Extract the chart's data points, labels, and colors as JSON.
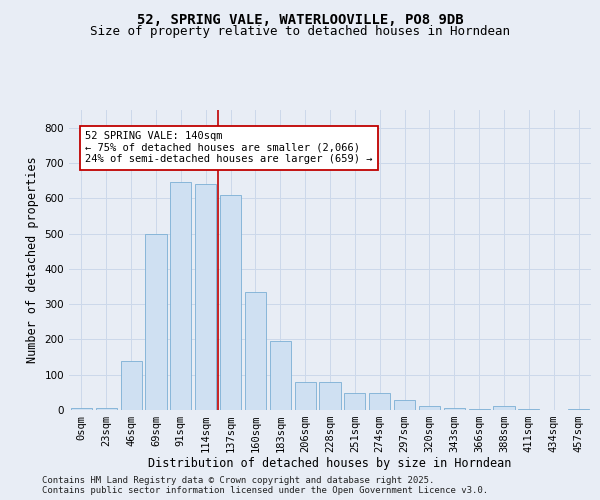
{
  "title1": "52, SPRING VALE, WATERLOOVILLE, PO8 9DB",
  "title2": "Size of property relative to detached houses in Horndean",
  "xlabel": "Distribution of detached houses by size in Horndean",
  "ylabel": "Number of detached properties",
  "bar_color": "#cfe0f2",
  "bar_edge_color": "#7bafd4",
  "categories": [
    "0sqm",
    "23sqm",
    "46sqm",
    "69sqm",
    "91sqm",
    "114sqm",
    "137sqm",
    "160sqm",
    "183sqm",
    "206sqm",
    "228sqm",
    "251sqm",
    "274sqm",
    "297sqm",
    "320sqm",
    "343sqm",
    "366sqm",
    "388sqm",
    "411sqm",
    "434sqm",
    "457sqm"
  ],
  "values": [
    5,
    5,
    140,
    500,
    645,
    640,
    610,
    335,
    195,
    80,
    80,
    47,
    47,
    28,
    10,
    5,
    2,
    10,
    2,
    0,
    2
  ],
  "vline_pos": 6.5,
  "vline_color": "#c00000",
  "annotation_text": "52 SPRING VALE: 140sqm\n← 75% of detached houses are smaller (2,066)\n24% of semi-detached houses are larger (659) →",
  "annotation_box_color": "#ffffff",
  "annotation_box_edge": "#c00000",
  "ylim": [
    0,
    850
  ],
  "yticks": [
    0,
    100,
    200,
    300,
    400,
    500,
    600,
    700,
    800
  ],
  "grid_color": "#ccd8ea",
  "bg_color": "#e8edf5",
  "footnote1": "Contains HM Land Registry data © Crown copyright and database right 2025.",
  "footnote2": "Contains public sector information licensed under the Open Government Licence v3.0.",
  "title1_fontsize": 10,
  "title2_fontsize": 9,
  "xlabel_fontsize": 8.5,
  "ylabel_fontsize": 8.5,
  "tick_fontsize": 7.5,
  "annotation_fontsize": 7.5,
  "footnote_fontsize": 6.5
}
